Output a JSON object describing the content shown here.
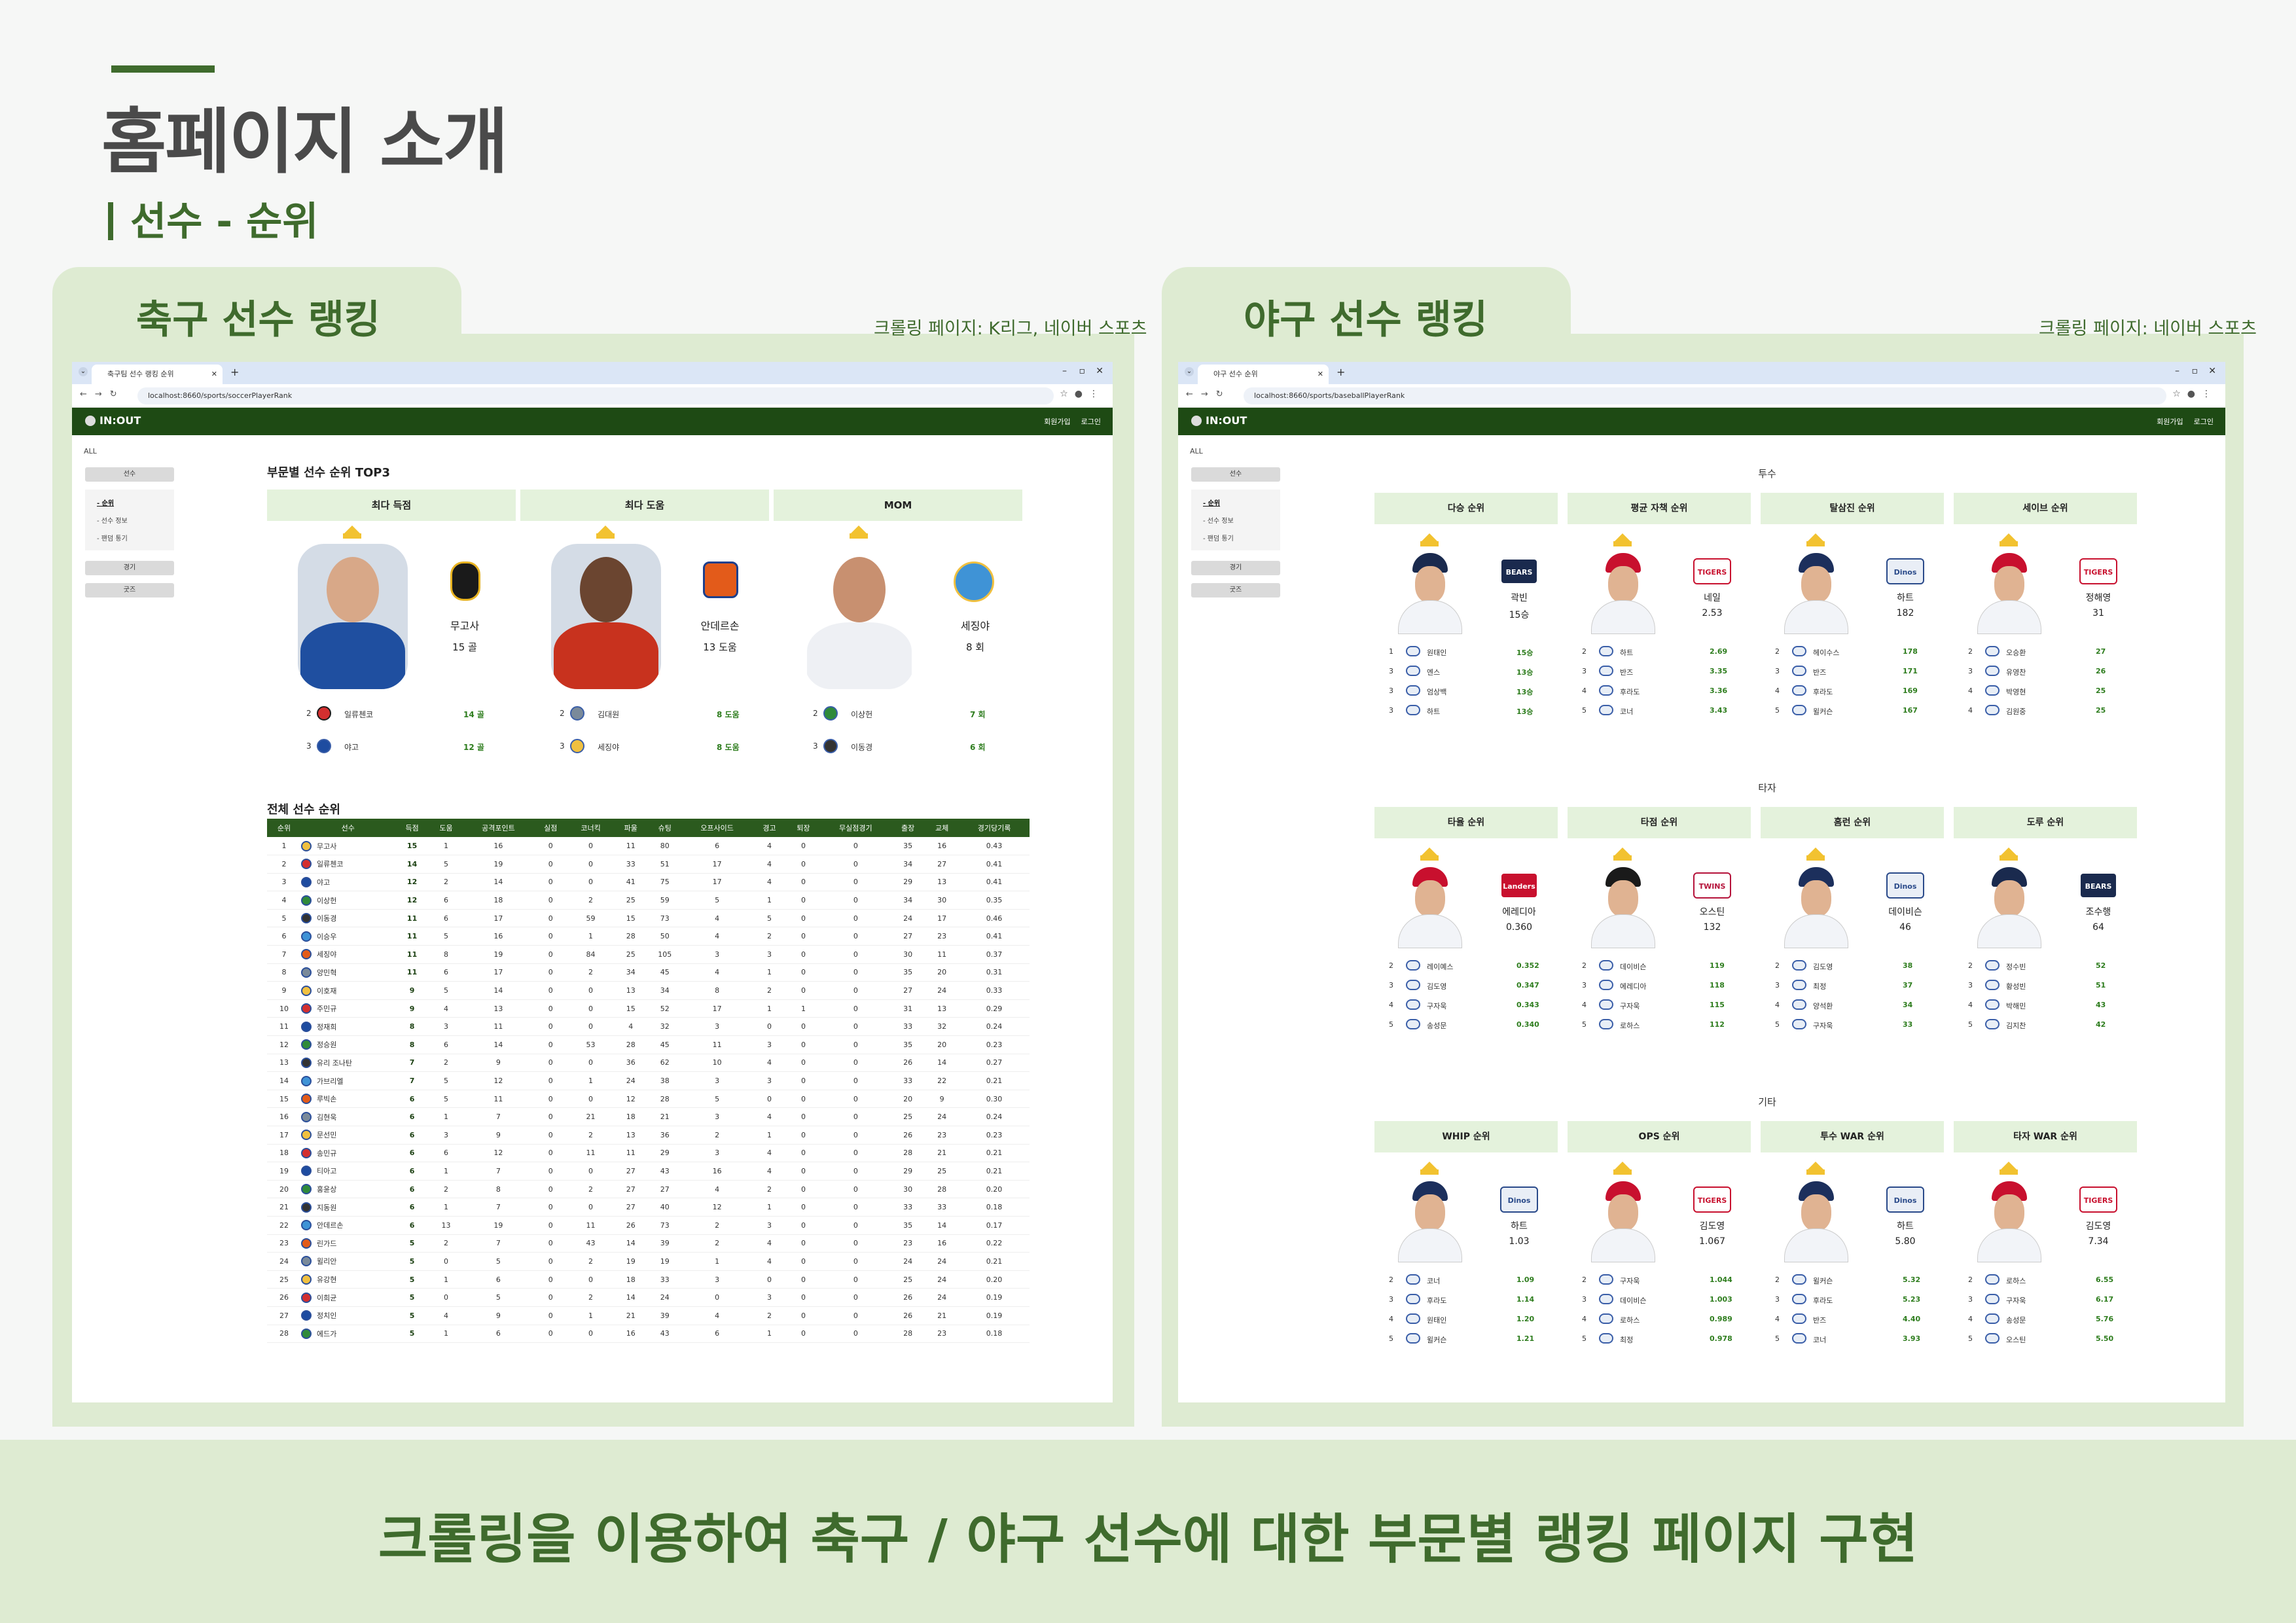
{
  "slide": {
    "title": "홈페이지 소개",
    "subtitle": "선수 - 순위",
    "footer": "크롤링을 이용하여 축구 / 야구 선수에 대한 부문별 랭킹 페이지 구현"
  },
  "colors": {
    "brand_green": "#3f6b2d",
    "panel_bg": "#deebd2",
    "site_nav": "#1e4a14",
    "value_green": "#2e7d1e",
    "category_bg": "#e4f2dc"
  },
  "soccer_panel": {
    "title": "축구 선수 랭킹",
    "crawl_note": "크롤링 페이지: K리그, 네이버 스포츠",
    "browser": {
      "tab_title": "축구팀 선수 랭킹 순위",
      "url": "localhost:8660/sports/soccerPlayerRank"
    },
    "site": {
      "logo": "IN:OUT",
      "signup": "회원가입",
      "login": "로그인"
    },
    "sidebar": {
      "all": "ALL",
      "player": "선수",
      "sub": [
        "- 순위",
        "- 선수 정보",
        "- 팬덤 통기"
      ],
      "match": "경기",
      "goods": "굿즈"
    },
    "top3_title": "부문별 선수 순위 TOP3",
    "categories": [
      {
        "label": "최다 득점",
        "leader": {
          "name": "무고사",
          "value": "15 골"
        },
        "others": [
          {
            "rank": "2",
            "name": "일류첸코",
            "value": "14 골"
          },
          {
            "rank": "3",
            "name": "야고",
            "value": "12 골"
          }
        ]
      },
      {
        "label": "최다 도움",
        "leader": {
          "name": "안데르손",
          "value": "13 도움"
        },
        "others": [
          {
            "rank": "2",
            "name": "김대원",
            "value": "8 도움"
          },
          {
            "rank": "3",
            "name": "세징야",
            "value": "8 도움"
          }
        ]
      },
      {
        "label": "MOM",
        "leader": {
          "name": "세징야",
          "value": "8 회"
        },
        "others": [
          {
            "rank": "2",
            "name": "이상헌",
            "value": "7 회"
          },
          {
            "rank": "3",
            "name": "이동경",
            "value": "6 회"
          }
        ]
      }
    ],
    "table_title": "전체 선수 순위",
    "table_headers": [
      "순위",
      "선수",
      "득점",
      "도움",
      "공격포인트",
      "실점",
      "코너킥",
      "파울",
      "슈팅",
      "오프사이드",
      "경고",
      "퇴장",
      "무실점경기",
      "출장",
      "교체",
      "경기당기록"
    ],
    "table_rows": [
      [
        "1",
        "무고사",
        "15",
        "1",
        "16",
        "0",
        "0",
        "11",
        "80",
        "6",
        "4",
        "0",
        "0",
        "35",
        "16",
        "0.43"
      ],
      [
        "2",
        "일류첸코",
        "14",
        "5",
        "19",
        "0",
        "0",
        "33",
        "51",
        "17",
        "4",
        "0",
        "0",
        "34",
        "27",
        "0.41"
      ],
      [
        "3",
        "야고",
        "12",
        "2",
        "14",
        "0",
        "0",
        "41",
        "75",
        "17",
        "4",
        "0",
        "0",
        "29",
        "13",
        "0.41"
      ],
      [
        "4",
        "이상헌",
        "12",
        "6",
        "18",
        "0",
        "2",
        "25",
        "59",
        "5",
        "1",
        "0",
        "0",
        "34",
        "30",
        "0.35"
      ],
      [
        "5",
        "이동경",
        "11",
        "6",
        "17",
        "0",
        "59",
        "15",
        "73",
        "4",
        "5",
        "0",
        "0",
        "24",
        "17",
        "0.46"
      ],
      [
        "6",
        "이승우",
        "11",
        "5",
        "16",
        "0",
        "1",
        "28",
        "50",
        "4",
        "2",
        "0",
        "0",
        "27",
        "23",
        "0.41"
      ],
      [
        "7",
        "세징야",
        "11",
        "8",
        "19",
        "0",
        "84",
        "25",
        "105",
        "3",
        "3",
        "0",
        "0",
        "30",
        "11",
        "0.37"
      ],
      [
        "8",
        "양민혁",
        "11",
        "6",
        "17",
        "0",
        "2",
        "34",
        "45",
        "4",
        "1",
        "0",
        "0",
        "35",
        "20",
        "0.31"
      ],
      [
        "9",
        "이호재",
        "9",
        "5",
        "14",
        "0",
        "0",
        "13",
        "34",
        "8",
        "2",
        "0",
        "0",
        "27",
        "24",
        "0.33"
      ],
      [
        "10",
        "주민규",
        "9",
        "4",
        "13",
        "0",
        "0",
        "15",
        "52",
        "17",
        "1",
        "1",
        "0",
        "31",
        "13",
        "0.29"
      ],
      [
        "11",
        "정재희",
        "8",
        "3",
        "11",
        "0",
        "0",
        "4",
        "32",
        "3",
        "0",
        "0",
        "0",
        "33",
        "32",
        "0.24"
      ],
      [
        "12",
        "정승원",
        "8",
        "6",
        "14",
        "0",
        "53",
        "28",
        "45",
        "11",
        "3",
        "0",
        "0",
        "35",
        "20",
        "0.23"
      ],
      [
        "13",
        "유리 조나탄",
        "7",
        "2",
        "9",
        "0",
        "0",
        "36",
        "62",
        "10",
        "4",
        "0",
        "0",
        "26",
        "14",
        "0.27"
      ],
      [
        "14",
        "가브리엘",
        "7",
        "5",
        "12",
        "0",
        "1",
        "24",
        "38",
        "3",
        "3",
        "0",
        "0",
        "33",
        "22",
        "0.21"
      ],
      [
        "15",
        "루빅손",
        "6",
        "5",
        "11",
        "0",
        "0",
        "12",
        "28",
        "5",
        "0",
        "0",
        "0",
        "20",
        "9",
        "0.30"
      ],
      [
        "16",
        "김현욱",
        "6",
        "1",
        "7",
        "0",
        "21",
        "18",
        "21",
        "3",
        "4",
        "0",
        "0",
        "25",
        "24",
        "0.24"
      ],
      [
        "17",
        "문선민",
        "6",
        "3",
        "9",
        "0",
        "2",
        "13",
        "36",
        "2",
        "1",
        "0",
        "0",
        "26",
        "23",
        "0.23"
      ],
      [
        "18",
        "송민규",
        "6",
        "6",
        "12",
        "0",
        "11",
        "11",
        "29",
        "3",
        "4",
        "0",
        "0",
        "28",
        "21",
        "0.21"
      ],
      [
        "19",
        "티아고",
        "6",
        "1",
        "7",
        "0",
        "0",
        "27",
        "43",
        "16",
        "4",
        "0",
        "0",
        "29",
        "25",
        "0.21"
      ],
      [
        "20",
        "홍윤상",
        "6",
        "2",
        "8",
        "0",
        "2",
        "27",
        "27",
        "4",
        "2",
        "0",
        "0",
        "30",
        "28",
        "0.20"
      ],
      [
        "21",
        "지동원",
        "6",
        "1",
        "7",
        "0",
        "0",
        "27",
        "40",
        "12",
        "1",
        "0",
        "0",
        "33",
        "33",
        "0.18"
      ],
      [
        "22",
        "안데르손",
        "6",
        "13",
        "19",
        "0",
        "11",
        "26",
        "73",
        "2",
        "3",
        "0",
        "0",
        "35",
        "14",
        "0.17"
      ],
      [
        "23",
        "린가드",
        "5",
        "2",
        "7",
        "0",
        "43",
        "14",
        "39",
        "2",
        "4",
        "0",
        "0",
        "23",
        "16",
        "0.22"
      ],
      [
        "24",
        "윌리안",
        "5",
        "0",
        "5",
        "0",
        "2",
        "19",
        "19",
        "1",
        "4",
        "0",
        "0",
        "24",
        "24",
        "0.21"
      ],
      [
        "25",
        "유강현",
        "5",
        "1",
        "6",
        "0",
        "0",
        "18",
        "33",
        "3",
        "0",
        "0",
        "0",
        "25",
        "24",
        "0.20"
      ],
      [
        "26",
        "이희균",
        "5",
        "0",
        "5",
        "0",
        "2",
        "14",
        "24",
        "0",
        "3",
        "0",
        "0",
        "26",
        "24",
        "0.19"
      ],
      [
        "27",
        "정치인",
        "5",
        "4",
        "9",
        "0",
        "1",
        "21",
        "39",
        "4",
        "2",
        "0",
        "0",
        "26",
        "21",
        "0.19"
      ],
      [
        "28",
        "에드가",
        "5",
        "1",
        "6",
        "0",
        "0",
        "16",
        "43",
        "6",
        "1",
        "0",
        "0",
        "28",
        "23",
        "0.18"
      ]
    ]
  },
  "baseball_panel": {
    "title": "야구 선수 랭킹",
    "crawl_note": "크롤링 페이지: 네이버 스포츠",
    "browser": {
      "tab_title": "야구 선수 순위",
      "url": "localhost:8660/sports/baseballPlayerRank"
    },
    "site": {
      "logo": "IN:OUT",
      "signup": "회원가입",
      "login": "로그인"
    },
    "sidebar": {
      "all": "ALL",
      "player": "선수",
      "sub": [
        "- 순위",
        "- 선수 정보",
        "- 팬덤 통기"
      ],
      "match": "경기",
      "goods": "굿즈"
    },
    "groups": [
      {
        "label": "투수",
        "cats": [
          {
            "label": "다승 순위",
            "leader": {
              "name": "곽빈",
              "value": "15승",
              "team": "doosan"
            },
            "others": [
              {
                "rank": "1",
                "name": "원태인",
                "value": "15승"
              },
              {
                "rank": "3",
                "name": "엔스",
                "value": "13승"
              },
              {
                "rank": "3",
                "name": "엄상백",
                "value": "13승"
              },
              {
                "rank": "3",
                "name": "하트",
                "value": "13승"
              }
            ]
          },
          {
            "label": "평균 자책 순위",
            "leader": {
              "name": "네일",
              "value": "2.53",
              "team": "kia"
            },
            "others": [
              {
                "rank": "2",
                "name": "하트",
                "value": "2.69"
              },
              {
                "rank": "3",
                "name": "반즈",
                "value": "3.35"
              },
              {
                "rank": "4",
                "name": "후라도",
                "value": "3.36"
              },
              {
                "rank": "5",
                "name": "코너",
                "value": "3.43"
              }
            ]
          },
          {
            "label": "탈삼진 순위",
            "leader": {
              "name": "하트",
              "value": "182",
              "team": "nc"
            },
            "others": [
              {
                "rank": "2",
                "name": "헤이수스",
                "value": "178"
              },
              {
                "rank": "3",
                "name": "반즈",
                "value": "171"
              },
              {
                "rank": "4",
                "name": "후라도",
                "value": "169"
              },
              {
                "rank": "5",
                "name": "윌커슨",
                "value": "167"
              }
            ]
          },
          {
            "label": "세이브 순위",
            "leader": {
              "name": "정해영",
              "value": "31",
              "team": "kia"
            },
            "others": [
              {
                "rank": "2",
                "name": "오승환",
                "value": "27"
              },
              {
                "rank": "3",
                "name": "유영찬",
                "value": "26"
              },
              {
                "rank": "4",
                "name": "박영현",
                "value": "25"
              },
              {
                "rank": "4",
                "name": "김원중",
                "value": "25"
              }
            ]
          }
        ]
      },
      {
        "label": "타자",
        "cats": [
          {
            "label": "타율 순위",
            "leader": {
              "name": "에레디아",
              "value": "0.360",
              "team": "ssg"
            },
            "others": [
              {
                "rank": "2",
                "name": "레이예스",
                "value": "0.352"
              },
              {
                "rank": "3",
                "name": "김도영",
                "value": "0.347"
              },
              {
                "rank": "4",
                "name": "구자욱",
                "value": "0.343"
              },
              {
                "rank": "5",
                "name": "송성문",
                "value": "0.340"
              }
            ]
          },
          {
            "label": "타점 순위",
            "leader": {
              "name": "오스틴",
              "value": "132",
              "team": "lg"
            },
            "others": [
              {
                "rank": "2",
                "name": "데이비슨",
                "value": "119"
              },
              {
                "rank": "3",
                "name": "에레디아",
                "value": "118"
              },
              {
                "rank": "4",
                "name": "구자욱",
                "value": "115"
              },
              {
                "rank": "5",
                "name": "로하스",
                "value": "112"
              }
            ]
          },
          {
            "label": "홈런 순위",
            "leader": {
              "name": "데이비슨",
              "value": "46",
              "team": "nc"
            },
            "others": [
              {
                "rank": "2",
                "name": "김도영",
                "value": "38"
              },
              {
                "rank": "3",
                "name": "최정",
                "value": "37"
              },
              {
                "rank": "4",
                "name": "양석환",
                "value": "34"
              },
              {
                "rank": "5",
                "name": "구자욱",
                "value": "33"
              }
            ]
          },
          {
            "label": "도루 순위",
            "leader": {
              "name": "조수행",
              "value": "64",
              "team": "doosan"
            },
            "others": [
              {
                "rank": "2",
                "name": "정수빈",
                "value": "52"
              },
              {
                "rank": "3",
                "name": "황성빈",
                "value": "51"
              },
              {
                "rank": "4",
                "name": "박해민",
                "value": "43"
              },
              {
                "rank": "5",
                "name": "김지찬",
                "value": "42"
              }
            ]
          }
        ]
      },
      {
        "label": "기타",
        "cats": [
          {
            "label": "WHIP 순위",
            "leader": {
              "name": "하트",
              "value": "1.03",
              "team": "nc"
            },
            "others": [
              {
                "rank": "2",
                "name": "코너",
                "value": "1.09"
              },
              {
                "rank": "3",
                "name": "후라도",
                "value": "1.14"
              },
              {
                "rank": "4",
                "name": "원태인",
                "value": "1.20"
              },
              {
                "rank": "5",
                "name": "윌커슨",
                "value": "1.21"
              }
            ]
          },
          {
            "label": "OPS 순위",
            "leader": {
              "name": "김도영",
              "value": "1.067",
              "team": "kia"
            },
            "others": [
              {
                "rank": "2",
                "name": "구자욱",
                "value": "1.044"
              },
              {
                "rank": "3",
                "name": "데이비슨",
                "value": "1.003"
              },
              {
                "rank": "4",
                "name": "로하스",
                "value": "0.989"
              },
              {
                "rank": "5",
                "name": "최정",
                "value": "0.978"
              }
            ]
          },
          {
            "label": "투수 WAR 순위",
            "leader": {
              "name": "하트",
              "value": "5.80",
              "team": "nc"
            },
            "others": [
              {
                "rank": "2",
                "name": "윌커슨",
                "value": "5.32"
              },
              {
                "rank": "3",
                "name": "후라도",
                "value": "5.23"
              },
              {
                "rank": "4",
                "name": "반즈",
                "value": "4.40"
              },
              {
                "rank": "5",
                "name": "코너",
                "value": "3.93"
              }
            ]
          },
          {
            "label": "타자 WAR 순위",
            "leader": {
              "name": "김도영",
              "value": "7.34",
              "team": "kia"
            },
            "others": [
              {
                "rank": "2",
                "name": "로하스",
                "value": "6.55"
              },
              {
                "rank": "3",
                "name": "구자욱",
                "value": "6.17"
              },
              {
                "rank": "4",
                "name": "송성문",
                "value": "5.76"
              },
              {
                "rank": "5",
                "name": "오스틴",
                "value": "5.50"
              }
            ]
          }
        ]
      }
    ],
    "team_logos": {
      "doosan": "BEARS",
      "kia": "TIGERS",
      "nc": "Dinos",
      "ssg": "Landers",
      "lg": "TWINS"
    }
  }
}
